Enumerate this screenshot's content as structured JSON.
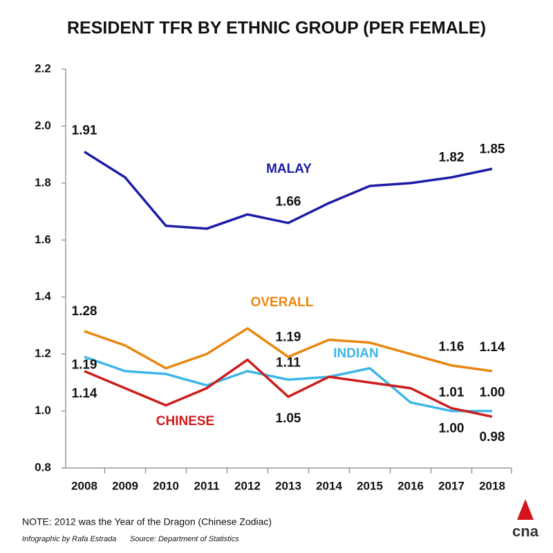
{
  "chart_data": {
    "type": "line",
    "title": "RESIDENT TFR BY ETHNIC GROUP (PER FEMALE)",
    "categories": [
      "2008",
      "2009",
      "2010",
      "2011",
      "2012",
      "2013",
      "2014",
      "2015",
      "2016",
      "2017",
      "2018"
    ],
    "series": [
      {
        "name": "MALAY",
        "color": "#1c1ca6",
        "values": [
          1.91,
          1.82,
          1.65,
          1.64,
          1.69,
          1.66,
          1.73,
          1.79,
          1.8,
          1.82,
          1.85
        ],
        "value_labels": [
          "1.91",
          null,
          null,
          null,
          null,
          "1.66",
          null,
          null,
          null,
          "1.82",
          "1.85"
        ]
      },
      {
        "name": "OVERALL",
        "color": "#e8860e",
        "values": [
          1.28,
          1.23,
          1.15,
          1.2,
          1.29,
          1.19,
          1.25,
          1.24,
          1.2,
          1.16,
          1.14
        ],
        "value_labels": [
          "1.28",
          null,
          null,
          null,
          null,
          "1.19",
          null,
          null,
          null,
          "1.16",
          "1.14"
        ]
      },
      {
        "name": "INDIAN",
        "color": "#3cb6e8",
        "values": [
          1.19,
          1.14,
          1.13,
          1.09,
          1.14,
          1.11,
          1.12,
          1.15,
          1.03,
          1.0,
          1.0
        ],
        "value_labels": [
          "1.19",
          null,
          null,
          null,
          null,
          "1.11",
          null,
          null,
          null,
          "1.00",
          "1.00"
        ]
      },
      {
        "name": "CHINESE",
        "color": "#cc1c1c",
        "values": [
          1.14,
          1.08,
          1.02,
          1.08,
          1.18,
          1.05,
          1.12,
          1.1,
          1.08,
          1.01,
          0.98
        ],
        "value_labels": [
          "1.14",
          null,
          null,
          null,
          null,
          "1.05",
          null,
          null,
          null,
          "1.01",
          "0.98"
        ]
      }
    ],
    "ylim": [
      0.8,
      2.2
    ],
    "yticks": [
      0.8,
      {
        "value": 1,
        "label": "1.0"
      },
      1.2,
      1.4,
      1.6,
      1.8,
      {
        "value": 2,
        "label": "2.0"
      },
      2.2
    ],
    "grid": false,
    "note": "NOTE: 2012 was the Year of the Dragon (Chinese Zodiac)",
    "credit": "Infographic by Rafa Estrada",
    "source": "Source: Department of Statistics",
    "logo": "cna"
  }
}
